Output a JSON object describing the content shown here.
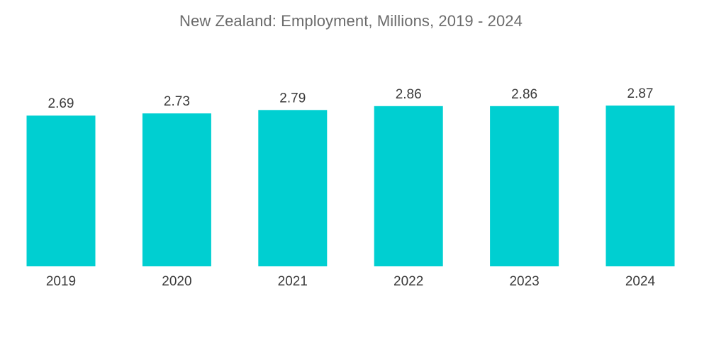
{
  "chart_data": {
    "type": "bar",
    "title": "New Zealand: Employment, Millions, 2019 - 2024",
    "xlabel": "",
    "ylabel": "",
    "categories": [
      "2019",
      "2020",
      "2021",
      "2022",
      "2023",
      "2024"
    ],
    "values": [
      2.69,
      2.73,
      2.79,
      2.86,
      2.86,
      2.87
    ],
    "data_labels": [
      "2.69",
      "2.73",
      "2.79",
      "2.86",
      "2.86",
      "2.87"
    ],
    "ylim": [
      0,
      2.87
    ],
    "grid": false,
    "legend": "none",
    "bar_color": "#00cfd1"
  }
}
